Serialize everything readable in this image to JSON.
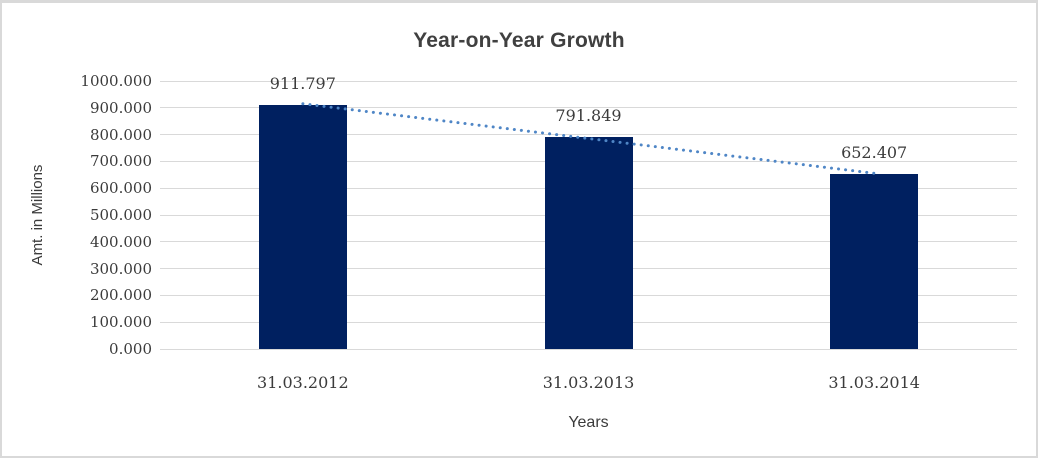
{
  "window": {
    "background": "#ffffff",
    "border_color": "#d9d9d9"
  },
  "chart_data": {
    "type": "bar",
    "title": "Year-on-Year Growth",
    "xlabel": "Years",
    "ylabel": "Amt. in Millions",
    "categories": [
      "31.03.2012",
      "31.03.2013",
      "31.03.2014"
    ],
    "series": [
      {
        "name": "Amt. in Millions",
        "values": [
          911.797,
          791.849,
          652.407
        ]
      }
    ],
    "data_labels": [
      "911.797",
      "791.849",
      "652.407"
    ],
    "ylim": [
      0,
      1000
    ],
    "ytick_step": 100,
    "ytick_labels": [
      "0.000",
      "100.000",
      "200.000",
      "300.000",
      "400.000",
      "500.000",
      "600.000",
      "700.000",
      "800.000",
      "900.000",
      "1000.000"
    ],
    "grid": true,
    "legend": "none",
    "bar_color": "#002060",
    "trendline": {
      "type": "linear",
      "style": "dotted",
      "color": "#4f86c6"
    },
    "title_color": "#404040",
    "label_color": "#3b3b3b",
    "gridline_color": "#d9d9d9"
  }
}
